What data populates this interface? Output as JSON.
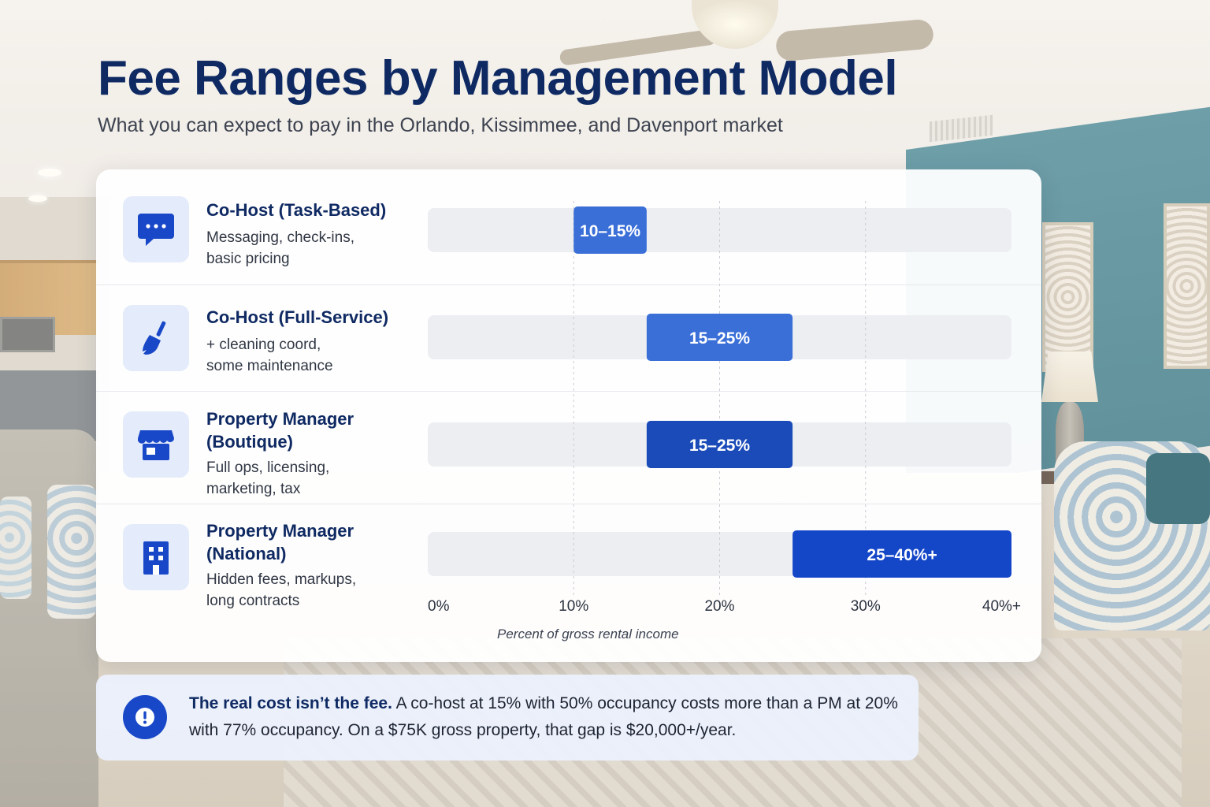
{
  "header": {
    "title": "Fee Ranges by Management Model",
    "subtitle": "What you can expect to pay in the Orlando, Kissimmee, and Davenport market"
  },
  "categories": [
    {
      "title_line1": "Co-Host (Task-Based)",
      "title_line2": "",
      "desc_line1": "Messaging, check-ins,",
      "desc_line2": "basic pricing",
      "icon": "chat-bubble-icon"
    },
    {
      "title_line1": "Co-Host (Full-Service)",
      "title_line2": "",
      "desc_line1": "+ cleaning coord,",
      "desc_line2": "some maintenance",
      "icon": "broom-icon"
    },
    {
      "title_line1": "Property Manager",
      "title_line2": "(Boutique)",
      "desc_line1": "Full ops, licensing,",
      "desc_line2": "marketing, tax",
      "icon": "storefront-icon"
    },
    {
      "title_line1": "Property Manager",
      "title_line2": "(National)",
      "desc_line1": "Hidden fees, markups,",
      "desc_line2": "long contracts",
      "icon": "office-building-icon"
    }
  ],
  "chart_data": {
    "type": "bar",
    "orientation": "horizontal-range",
    "categories": [
      "Co-Host (Task-Based)",
      "Co-Host (Full-Service)",
      "Property Manager (Boutique)",
      "Property Manager (National)"
    ],
    "series": [
      {
        "values": [
          {
            "start": 10,
            "end": 15,
            "label": "10–15%"
          },
          {
            "start": 15,
            "end": 25,
            "label": "15–25%"
          },
          {
            "start": 15,
            "end": 25,
            "label": "15–25%"
          },
          {
            "start": 25,
            "end": 40,
            "label": "25–40%+"
          }
        ]
      }
    ],
    "xlabel": "Percent of gross rental income",
    "ylabel": "",
    "xlim": [
      0,
      40
    ],
    "ticks": [
      "0%",
      "10%",
      "20%",
      "30%",
      "40%+"
    ],
    "grid": true,
    "colors": [
      "#3a6fd8",
      "#3a6fd8",
      "#1a4bb8",
      "#1446c8"
    ]
  },
  "callout": {
    "bold": "The real cost isn’t the fee.",
    "text": " A co-host at 15% with 50% occupancy costs more than a PM at 20% with 77% occupancy. On a $75K gross property, that gap is $20,000+/year.",
    "icon": "alert-icon"
  }
}
